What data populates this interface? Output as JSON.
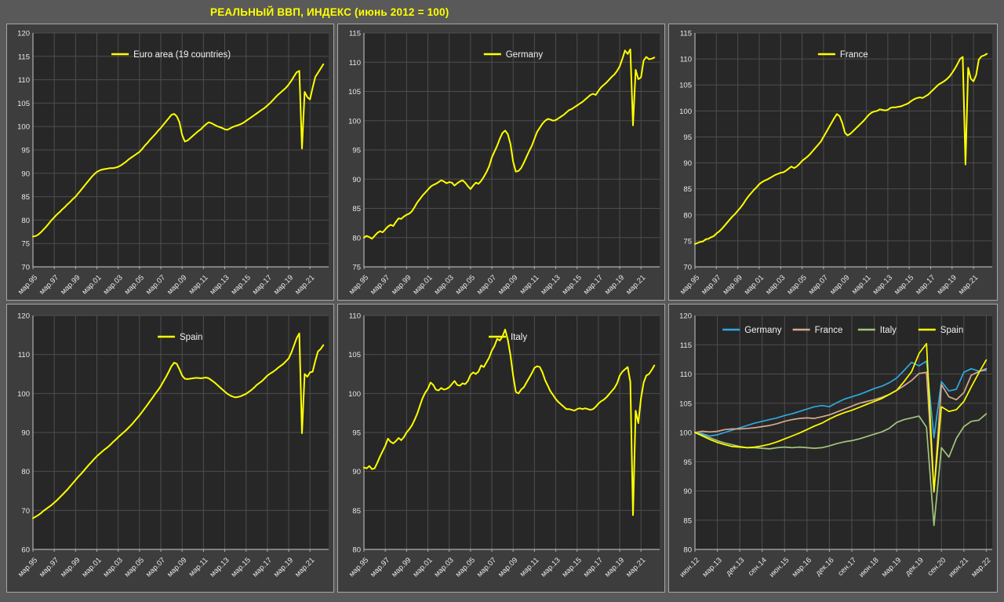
{
  "title": "РЕАЛЬНЫЙ ВВП, ИНДЕКС (июнь 2012 = 100)",
  "colors": {
    "page_bg": "#595959",
    "panel_bg": "#3d3d3d",
    "panel_border": "#a6a6a6",
    "plot_bg": "#272727",
    "gridline": "#4e4e4e",
    "axis": "#b0b0b0",
    "tick_text": "#e8e8e8",
    "legend_text": "#f2f2f2",
    "title_text": "#ffff00",
    "yellow": "#ffff00",
    "germany_blue": "#31a8e0",
    "france_tan": "#d7a98c",
    "italy_green": "#a2c47e",
    "spain_yellow": "#ffff00"
  },
  "chart_data": [
    {
      "id": "euro-area",
      "type": "line",
      "x_mode": "years",
      "x_start": 1995,
      "x_step": 0.25,
      "x_domain": [
        1995,
        2022.75
      ],
      "x_ticks": [
        1995,
        1997,
        1999,
        2001,
        2003,
        2005,
        2007,
        2009,
        2011,
        2013,
        2015,
        2017,
        2019,
        2021
      ],
      "x_tick_labels": [
        "мар.95",
        "мар.97",
        "мар.99",
        "мар.01",
        "мар.03",
        "мар.05",
        "мар.07",
        "мар.09",
        "мар.11",
        "мар.13",
        "мар.15",
        "мар.17",
        "мар.19",
        "мар.21"
      ],
      "ylim": [
        70,
        120
      ],
      "y_step": 5,
      "grid": true,
      "legend_position": "top-center",
      "series": [
        {
          "name": "Euro area (19 countries)",
          "color": "#ffff00",
          "values": [
            76.5,
            76.6,
            76.9,
            77.4,
            78.0,
            78.6,
            79.3,
            80.0,
            80.6,
            81.2,
            81.7,
            82.3,
            82.8,
            83.4,
            83.9,
            84.5,
            85.0,
            85.7,
            86.4,
            87.1,
            87.8,
            88.5,
            89.2,
            89.8,
            90.3,
            90.6,
            90.8,
            90.9,
            91.0,
            91.1,
            91.1,
            91.2,
            91.4,
            91.7,
            92.1,
            92.5,
            93.0,
            93.4,
            93.8,
            94.2,
            94.6,
            95.2,
            95.9,
            96.5,
            97.2,
            97.8,
            98.4,
            99.1,
            99.7,
            100.4,
            101.1,
            101.8,
            102.5,
            102.7,
            102.2,
            100.9,
            98.2,
            96.8,
            97.0,
            97.5,
            98.0,
            98.5,
            99.0,
            99.4,
            100.0,
            100.5,
            100.9,
            100.7,
            100.4,
            100.1,
            99.9,
            99.7,
            99.4,
            99.3,
            99.6,
            99.9,
            100.1,
            100.3,
            100.5,
            100.8,
            101.2,
            101.6,
            102.0,
            102.4,
            102.8,
            103.2,
            103.6,
            104.0,
            104.5,
            105.0,
            105.6,
            106.2,
            106.8,
            107.3,
            107.8,
            108.3,
            109.0,
            109.8,
            110.7,
            111.6,
            111.9,
            95.3,
            107.4,
            106.3,
            105.8,
            108.3,
            110.6,
            111.5,
            112.4,
            113.3
          ]
        }
      ]
    },
    {
      "id": "germany",
      "type": "line",
      "x_mode": "years",
      "x_start": 1995,
      "x_step": 0.25,
      "x_domain": [
        1995,
        2022.75
      ],
      "x_ticks": [
        1995,
        1997,
        1999,
        2001,
        2003,
        2005,
        2007,
        2009,
        2011,
        2013,
        2015,
        2017,
        2019,
        2021
      ],
      "x_tick_labels": [
        "мар.95",
        "мар.97",
        "мар.99",
        "мар.01",
        "мар.03",
        "мар.05",
        "мар.07",
        "мар.09",
        "мар.11",
        "мар.13",
        "мар.15",
        "мар.17",
        "мар.19",
        "мар.21"
      ],
      "ylim": [
        75,
        115
      ],
      "y_step": 5,
      "grid": true,
      "legend_position": "top-center",
      "series": [
        {
          "name": "Germany",
          "color": "#ffff00",
          "values": [
            80.0,
            80.3,
            80.1,
            79.8,
            80.3,
            80.8,
            81.1,
            80.9,
            81.4,
            81.9,
            82.2,
            82.0,
            82.7,
            83.3,
            83.2,
            83.6,
            83.9,
            84.1,
            84.5,
            85.2,
            86.0,
            86.6,
            87.2,
            87.7,
            88.2,
            88.7,
            89.0,
            89.2,
            89.5,
            89.8,
            89.6,
            89.3,
            89.5,
            89.4,
            88.9,
            89.3,
            89.6,
            89.8,
            89.4,
            88.8,
            88.3,
            88.9,
            89.4,
            89.2,
            89.7,
            90.4,
            91.2,
            92.2,
            93.7,
            94.7,
            95.7,
            96.9,
            97.9,
            98.3,
            97.7,
            96.0,
            93.0,
            91.3,
            91.4,
            91.9,
            92.8,
            93.8,
            94.8,
            95.7,
            96.9,
            98.1,
            98.8,
            99.5,
            100.0,
            100.3,
            100.2,
            100.0,
            100.1,
            100.4,
            100.7,
            101.0,
            101.4,
            101.8,
            102.0,
            102.3,
            102.6,
            102.9,
            103.2,
            103.6,
            104.0,
            104.4,
            104.6,
            104.4,
            105.1,
            105.7,
            106.1,
            106.5,
            107.0,
            107.5,
            107.9,
            108.5,
            109.3,
            110.6,
            112.0,
            111.4,
            112.2,
            99.2,
            108.7,
            107.1,
            107.4,
            110.3,
            110.9,
            110.5,
            110.6,
            110.8
          ]
        }
      ]
    },
    {
      "id": "france",
      "type": "line",
      "x_mode": "years",
      "x_start": 1995,
      "x_step": 0.25,
      "x_domain": [
        1995,
        2022.75
      ],
      "x_ticks": [
        1995,
        1997,
        1999,
        2001,
        2003,
        2005,
        2007,
        2009,
        2011,
        2013,
        2015,
        2017,
        2019,
        2021
      ],
      "x_tick_labels": [
        "мар.95",
        "мар.97",
        "мар.99",
        "мар.01",
        "мар.03",
        "мар.05",
        "мар.07",
        "мар.09",
        "мар.11",
        "мар.13",
        "мар.15",
        "мар.17",
        "мар.19",
        "мар.21"
      ],
      "ylim": [
        70,
        115
      ],
      "y_step": 5,
      "grid": true,
      "legend_position": "top-center",
      "series": [
        {
          "name": "France",
          "color": "#ffff00",
          "values": [
            74.4,
            74.6,
            74.8,
            74.9,
            75.3,
            75.4,
            75.7,
            75.9,
            76.4,
            76.8,
            77.3,
            77.9,
            78.5,
            79.1,
            79.7,
            80.2,
            80.8,
            81.4,
            82.1,
            82.9,
            83.6,
            84.2,
            84.8,
            85.3,
            85.9,
            86.3,
            86.6,
            86.8,
            87.1,
            87.4,
            87.7,
            87.9,
            88.1,
            88.2,
            88.5,
            88.9,
            89.3,
            89.0,
            89.3,
            89.8,
            90.4,
            90.8,
            91.2,
            91.7,
            92.3,
            92.9,
            93.5,
            94.1,
            95.0,
            95.9,
            96.8,
            97.7,
            98.6,
            99.4,
            99.0,
            97.7,
            95.8,
            95.3,
            95.6,
            96.1,
            96.6,
            97.1,
            97.6,
            98.1,
            98.7,
            99.3,
            99.7,
            99.9,
            100.0,
            100.3,
            100.2,
            100.1,
            100.2,
            100.6,
            100.7,
            100.7,
            100.8,
            100.9,
            101.1,
            101.3,
            101.6,
            102.0,
            102.3,
            102.5,
            102.6,
            102.5,
            102.8,
            103.1,
            103.6,
            104.1,
            104.6,
            105.1,
            105.4,
            105.7,
            106.1,
            106.6,
            107.3,
            108.1,
            109.0,
            110.0,
            110.4,
            89.7,
            108.3,
            106.2,
            105.7,
            106.9,
            109.9,
            110.5,
            110.7,
            111.0
          ]
        }
      ]
    },
    {
      "id": "spain",
      "type": "line",
      "x_mode": "years",
      "x_start": 1995,
      "x_step": 0.25,
      "x_domain": [
        1995,
        2022.75
      ],
      "x_ticks": [
        1995,
        1997,
        1999,
        2001,
        2003,
        2005,
        2007,
        2009,
        2011,
        2013,
        2015,
        2017,
        2019,
        2021
      ],
      "x_tick_labels": [
        "мар.95",
        "мар.97",
        "мар.99",
        "мар.01",
        "мар.03",
        "мар.05",
        "мар.07",
        "мар.09",
        "мар.11",
        "мар.13",
        "мар.15",
        "мар.17",
        "мар.19",
        "мар.21"
      ],
      "ylim": [
        60,
        120
      ],
      "y_step": 10,
      "grid": true,
      "legend_position": "top-center",
      "series": [
        {
          "name": "Spain",
          "color": "#ffff00",
          "values": [
            68.0,
            68.4,
            68.8,
            69.3,
            69.9,
            70.4,
            70.9,
            71.4,
            72.0,
            72.6,
            73.3,
            74.0,
            74.7,
            75.4,
            76.2,
            77.0,
            77.8,
            78.6,
            79.3,
            80.1,
            80.9,
            81.7,
            82.4,
            83.2,
            83.9,
            84.5,
            85.1,
            85.7,
            86.2,
            86.8,
            87.5,
            88.1,
            88.8,
            89.4,
            90.0,
            90.6,
            91.3,
            92.0,
            92.8,
            93.6,
            94.4,
            95.3,
            96.2,
            97.1,
            98.1,
            99.0,
            100.0,
            100.9,
            101.9,
            103.1,
            104.3,
            105.6,
            107.0,
            107.9,
            107.6,
            106.2,
            104.6,
            103.8,
            103.7,
            103.8,
            103.9,
            104.0,
            104.0,
            103.9,
            104.0,
            104.1,
            103.9,
            103.4,
            102.9,
            102.3,
            101.7,
            101.1,
            100.5,
            99.9,
            99.5,
            99.2,
            99.0,
            99.1,
            99.3,
            99.6,
            99.9,
            100.4,
            100.9,
            101.5,
            102.2,
            102.7,
            103.2,
            103.9,
            104.6,
            105.1,
            105.5,
            106.0,
            106.6,
            107.1,
            107.6,
            108.3,
            109.0,
            110.5,
            112.3,
            114.2,
            115.4,
            89.8,
            105.0,
            104.3,
            105.4,
            105.6,
            108.4,
            110.8,
            111.4,
            112.4
          ]
        }
      ]
    },
    {
      "id": "italy",
      "type": "line",
      "x_mode": "years",
      "x_start": 1995,
      "x_step": 0.25,
      "x_domain": [
        1995,
        2022.75
      ],
      "x_ticks": [
        1995,
        1997,
        1999,
        2001,
        2003,
        2005,
        2007,
        2009,
        2011,
        2013,
        2015,
        2017,
        2019,
        2021
      ],
      "x_tick_labels": [
        "мар.95",
        "мар.97",
        "мар.99",
        "мар.01",
        "мар.03",
        "мар.05",
        "мар.07",
        "мар.09",
        "мар.11",
        "мар.13",
        "мар.15",
        "мар.17",
        "мар.19",
        "мар.21"
      ],
      "ylim": [
        80,
        110
      ],
      "y_step": 5,
      "grid": true,
      "legend_position": "top-center",
      "series": [
        {
          "name": "Italy",
          "color": "#ffff00",
          "values": [
            90.5,
            90.4,
            90.7,
            90.3,
            90.4,
            91.1,
            91.9,
            92.6,
            93.3,
            94.2,
            93.8,
            93.6,
            93.9,
            94.3,
            94.0,
            94.4,
            95.0,
            95.4,
            95.9,
            96.6,
            97.4,
            98.4,
            99.4,
            100.1,
            100.6,
            101.4,
            101.1,
            100.5,
            100.4,
            100.7,
            100.5,
            100.6,
            100.8,
            101.2,
            101.6,
            101.1,
            101.0,
            101.3,
            101.2,
            101.6,
            102.4,
            102.7,
            102.5,
            102.8,
            103.6,
            103.4,
            104.0,
            104.6,
            105.5,
            106.1,
            107.0,
            106.8,
            107.3,
            108.2,
            106.9,
            104.9,
            102.3,
            100.2,
            100.0,
            100.5,
            100.8,
            101.4,
            102.0,
            102.6,
            103.3,
            103.5,
            103.4,
            102.7,
            101.7,
            101.0,
            100.3,
            99.8,
            99.3,
            98.9,
            98.6,
            98.3,
            98.0,
            98.0,
            97.9,
            97.8,
            98.0,
            98.1,
            98.0,
            98.1,
            98.0,
            97.9,
            98.0,
            98.3,
            98.7,
            99.0,
            99.2,
            99.5,
            99.9,
            100.3,
            100.7,
            101.3,
            102.3,
            102.8,
            103.1,
            103.4,
            101.5,
            84.4,
            97.8,
            96.2,
            99.4,
            101.4,
            102.3,
            102.5,
            103.0,
            103.6
          ]
        }
      ]
    },
    {
      "id": "combined",
      "type": "line",
      "x_mode": "index",
      "x_domain": [
        0,
        39.8
      ],
      "x_ticks": [
        0,
        3,
        6,
        9,
        12,
        15,
        18,
        21,
        24,
        27,
        30,
        33,
        36,
        39
      ],
      "x_tick_labels": [
        "июн.12",
        "мар.13",
        "дек.13",
        "сен.14",
        "июн.15",
        "мар.16",
        "дек.16",
        "сен.17",
        "июн.18",
        "мар.19",
        "дек.19",
        "сен.20",
        "июн.21",
        "мар.22"
      ],
      "ylim": [
        80,
        120
      ],
      "y_step": 5,
      "grid": true,
      "legend_position": "top-center",
      "series": [
        {
          "name": "Germany",
          "color": "#31a8e0",
          "values": [
            100.0,
            99.8,
            99.4,
            99.6,
            100.0,
            100.4,
            100.8,
            101.2,
            101.6,
            101.9,
            102.2,
            102.5,
            102.9,
            103.2,
            103.6,
            104.0,
            104.4,
            104.6,
            104.4,
            105.1,
            105.7,
            106.1,
            106.5,
            107.0,
            107.5,
            107.9,
            108.5,
            109.3,
            110.6,
            112.0,
            111.4,
            112.2,
            99.1,
            108.7,
            107.1,
            107.4,
            110.3,
            110.9,
            110.5,
            110.6
          ]
        },
        {
          "name": "France",
          "color": "#d7a98c",
          "values": [
            100.0,
            100.2,
            100.1,
            100.2,
            100.5,
            100.6,
            100.6,
            100.7,
            100.8,
            101.0,
            101.2,
            101.5,
            101.9,
            102.2,
            102.4,
            102.5,
            102.4,
            102.7,
            103.0,
            103.5,
            104.0,
            104.5,
            105.0,
            105.3,
            105.6,
            106.0,
            106.5,
            107.2,
            108.0,
            108.9,
            110.1,
            110.3,
            89.8,
            108.2,
            106.1,
            105.6,
            106.8,
            109.8,
            110.4,
            110.9
          ]
        },
        {
          "name": "Italy",
          "color": "#a2c47e",
          "values": [
            100.0,
            99.6,
            99.1,
            98.6,
            98.2,
            97.9,
            97.6,
            97.4,
            97.4,
            97.3,
            97.2,
            97.4,
            97.5,
            97.4,
            97.5,
            97.4,
            97.3,
            97.4,
            97.7,
            98.1,
            98.4,
            98.6,
            98.9,
            99.3,
            99.7,
            100.1,
            100.7,
            101.7,
            102.2,
            102.5,
            102.8,
            100.9,
            84.1,
            97.4,
            95.8,
            99.0,
            101.0,
            101.9,
            102.1,
            103.2
          ]
        },
        {
          "name": "Spain",
          "color": "#ffff00",
          "values": [
            100.0,
            99.4,
            98.8,
            98.3,
            97.9,
            97.6,
            97.5,
            97.4,
            97.5,
            97.7,
            98.0,
            98.4,
            98.9,
            99.4,
            99.9,
            100.5,
            101.1,
            101.6,
            102.3,
            102.9,
            103.4,
            103.8,
            104.3,
            104.8,
            105.3,
            105.8,
            106.5,
            107.2,
            108.7,
            110.4,
            113.5,
            115.2,
            89.9,
            104.4,
            103.6,
            103.9,
            105.3,
            107.8,
            110.2,
            112.4
          ]
        }
      ]
    }
  ]
}
